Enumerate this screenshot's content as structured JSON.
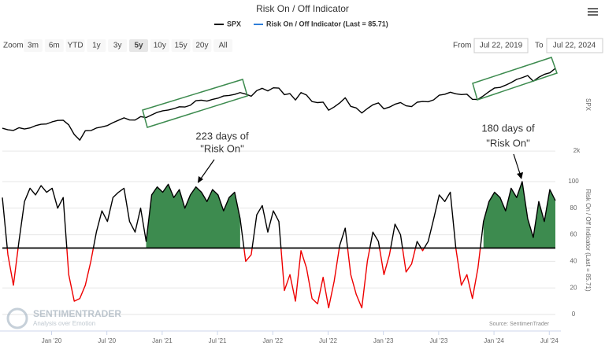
{
  "header": {
    "title": "Risk On / Off Indicator"
  },
  "range_selector": {
    "zoom_label": "Zoom",
    "buttons": [
      "3m",
      "6m",
      "YTD",
      "1y",
      "3y",
      "5y",
      "10y",
      "15y",
      "20y",
      "All"
    ],
    "selected_index": 5,
    "from_label": "From",
    "from": "Jul 22, 2019",
    "to_label": "To",
    "to": "Jul 22, 2024"
  },
  "chart_data": {
    "type": "line",
    "x": [
      2019.555,
      2019.605,
      2019.655,
      2019.705,
      2019.755,
      2019.805,
      2019.855,
      2019.905,
      2019.955,
      2020.005,
      2020.055,
      2020.105,
      2020.155,
      2020.205,
      2020.255,
      2020.305,
      2020.355,
      2020.405,
      2020.455,
      2020.505,
      2020.555,
      2020.605,
      2020.655,
      2020.705,
      2020.755,
      2020.805,
      2020.855,
      2020.905,
      2020.955,
      2021.005,
      2021.055,
      2021.105,
      2021.155,
      2021.205,
      2021.255,
      2021.305,
      2021.355,
      2021.405,
      2021.455,
      2021.505,
      2021.555,
      2021.605,
      2021.655,
      2021.705,
      2021.755,
      2021.805,
      2021.855,
      2021.905,
      2021.955,
      2022.005,
      2022.055,
      2022.105,
      2022.155,
      2022.205,
      2022.255,
      2022.305,
      2022.355,
      2022.405,
      2022.455,
      2022.505,
      2022.555,
      2022.605,
      2022.655,
      2022.705,
      2022.755,
      2022.805,
      2022.855,
      2022.905,
      2022.955,
      2023.005,
      2023.055,
      2023.105,
      2023.155,
      2023.205,
      2023.255,
      2023.305,
      2023.355,
      2023.405,
      2023.455,
      2023.505,
      2023.555,
      2023.605,
      2023.655,
      2023.705,
      2023.755,
      2023.805,
      2023.855,
      2023.905,
      2023.955,
      2024.005,
      2024.055,
      2024.105,
      2024.155,
      2024.205,
      2024.255,
      2024.305,
      2024.355,
      2024.405,
      2024.455,
      2024.505,
      2024.555
    ],
    "xlim": [
      2019.555,
      2024.555
    ],
    "xticks": [
      {
        "value": 2020.0,
        "label": "Jan '20"
      },
      {
        "value": 2020.5,
        "label": "Jul '20"
      },
      {
        "value": 2021.0,
        "label": "Jan '21"
      },
      {
        "value": 2021.5,
        "label": "Jul '21"
      },
      {
        "value": 2022.0,
        "label": "Jan '22"
      },
      {
        "value": 2022.5,
        "label": "Jul '22"
      },
      {
        "value": 2023.0,
        "label": "Jan '23"
      },
      {
        "value": 2023.5,
        "label": "Jul '23"
      },
      {
        "value": 2024.0,
        "label": "Jan '24"
      },
      {
        "value": 2024.5,
        "label": "Jul '24"
      }
    ],
    "series": [
      {
        "name": "SPX",
        "color": "#000000",
        "axis": "y2",
        "values": [
          2985,
          2918,
          2887,
          3005,
          2952,
          2995,
          3093,
          3153,
          3168,
          3258,
          3320,
          3327,
          3128,
          2711,
          2470,
          2875,
          2881,
          2991,
          3041,
          3100,
          3224,
          3327,
          3431,
          3341,
          3335,
          3483,
          3443,
          3557,
          3668,
          3735,
          3768,
          3826,
          3907,
          3898,
          3974,
          4170,
          4192,
          4155,
          4227,
          4280,
          4374,
          4395,
          4441,
          4520,
          4455,
          4364,
          4605,
          4704,
          4591,
          4726,
          4713,
          4431,
          4475,
          4201,
          4520,
          4413,
          4132,
          4088,
          4108,
          3760,
          3899,
          4072,
          4297,
          3924,
          3856,
          3640,
          3830,
          3993,
          4076,
          3818,
          3895,
          4017,
          4090,
          3951,
          3917,
          4105,
          4137,
          4124,
          4206,
          4409,
          4446,
          4536,
          4468,
          4433,
          4450,
          4229,
          4224,
          4383,
          4559,
          4719,
          4742,
          4840,
          4954,
          5088,
          5165,
          5254,
          5011,
          5181,
          5305,
          5375,
          5564
        ]
      },
      {
        "name": "Risk On / Off Indicator (Last = 85.71)",
        "color": "#2f7ed8",
        "above_color": "#000000",
        "below_color": "#ee0000",
        "values": [
          88,
          45,
          22,
          55,
          85,
          95,
          90,
          97,
          92,
          95,
          80,
          88,
          30,
          10,
          12,
          22,
          40,
          62,
          78,
          70,
          88,
          92,
          95,
          70,
          62,
          80,
          55,
          90,
          96,
          92,
          98,
          88,
          94,
          80,
          90,
          96,
          92,
          85,
          94,
          90,
          78,
          88,
          92,
          72,
          40,
          45,
          75,
          82,
          62,
          78,
          70,
          18,
          30,
          10,
          48,
          35,
          12,
          8,
          28,
          5,
          25,
          52,
          65,
          30,
          15,
          5,
          40,
          62,
          55,
          30,
          45,
          68,
          60,
          32,
          38,
          55,
          48,
          55,
          72,
          90,
          85,
          92,
          50,
          22,
          30,
          12,
          35,
          70,
          85,
          92,
          88,
          78,
          95,
          88,
          100,
          72,
          58,
          85,
          70,
          94,
          85.71
        ]
      }
    ],
    "ylim": [
      0,
      100
    ],
    "yticks": [
      0,
      20,
      40,
      60,
      80,
      100
    ],
    "y2lim": [
      1800,
      5800
    ],
    "y2ticks": [
      {
        "value": 2000,
        "label": "2k"
      }
    ],
    "y_label": "Risk On / Off Indicator (Last = 85.71)",
    "y2_label": "SPX",
    "threshold": 50,
    "risk_on_periods": [
      [
        2020.84,
        2021.74
      ],
      [
        2023.87,
        2024.555
      ]
    ],
    "fill_color": "#3d8b4f",
    "grid": true,
    "annotations": [
      {
        "text": [
          "223 days of",
          "\"Risk On\""
        ]
      },
      {
        "text": [
          "180 days of",
          "\"Risk On\""
        ]
      }
    ],
    "source": "Source: SentimenTrader",
    "watermark": [
      "SENTIMENTRADER",
      "Analysis over Emotion"
    ]
  }
}
